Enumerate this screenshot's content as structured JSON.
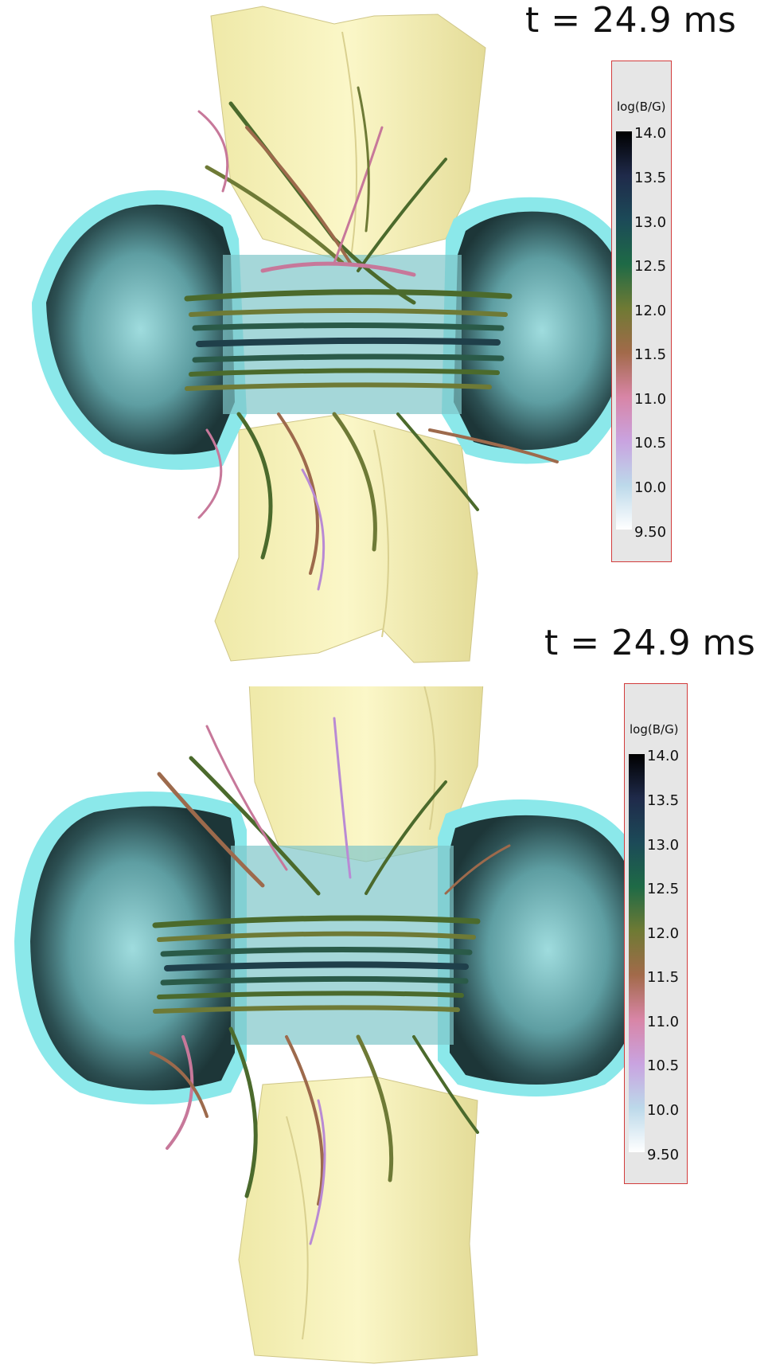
{
  "panels": [
    {
      "time_label": "t = 24.9 ms",
      "colorbar": {
        "title": "log(B/G)",
        "ticks": [
          "14.0",
          "13.5",
          "13.0",
          "12.5",
          "12.0",
          "11.5",
          "11.0",
          "10.5",
          "10.0",
          "9.50"
        ],
        "range": [
          9.5,
          14.0
        ],
        "colors": [
          "#000000",
          "#1f2a4a",
          "#1c4a58",
          "#1e6a46",
          "#6f7a34",
          "#a26a4a",
          "#d885a6",
          "#c9a3e0",
          "#bcd9ea",
          "#ffffff"
        ]
      }
    },
    {
      "time_label": "t = 24.9 ms",
      "colorbar": {
        "title": "log(B/G)",
        "ticks": [
          "14.0",
          "13.5",
          "13.0",
          "12.5",
          "12.0",
          "11.5",
          "11.0",
          "10.5",
          "10.0",
          "9.50"
        ],
        "range": [
          9.5,
          14.0
        ],
        "colors": [
          "#000000",
          "#1f2a4a",
          "#1c4a58",
          "#1e6a46",
          "#6f7a34",
          "#a26a4a",
          "#d885a6",
          "#c9a3e0",
          "#bcd9ea",
          "#ffffff"
        ]
      }
    }
  ],
  "scene": {
    "outflow_color": "#f7f2b5",
    "shell_color": "#8be8ea",
    "shell_dark_color": "#2f5558",
    "field_line_colors": [
      "#4b6a2c",
      "#6e7a36",
      "#9d6a4c",
      "#c7789a",
      "#2a5a48",
      "#1f3f4a",
      "#b98ad4"
    ]
  }
}
